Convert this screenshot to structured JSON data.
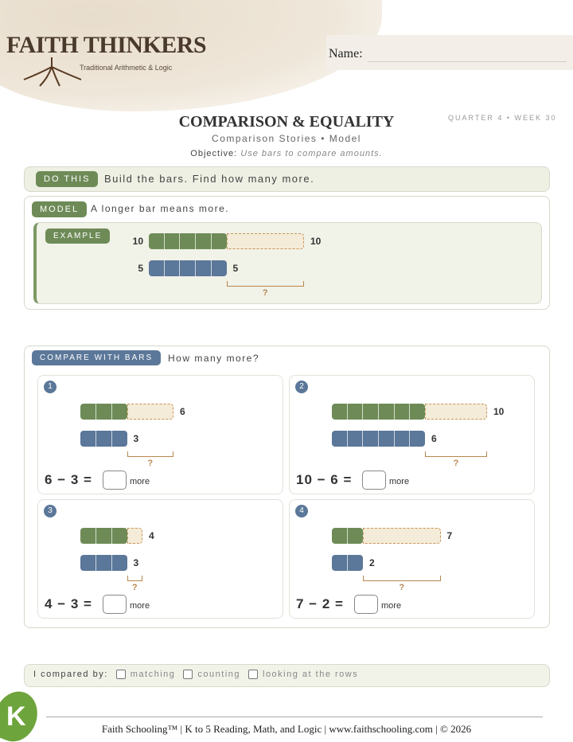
{
  "header": {
    "brand": "FAITH THINKERS",
    "tagline": "Traditional Arithmetic & Logic",
    "name_label": "Name:"
  },
  "title": "COMPARISON & EQUALITY",
  "quarter": "QUARTER 4 • WEEK 30",
  "subtitle": "Comparison Stories • Model",
  "objective_label": "Objective:",
  "objective": "Use bars to compare amounts.",
  "do_this": {
    "tag": "DO THIS",
    "text": "Build the bars. Find how many more."
  },
  "model": {
    "tag": "MODEL",
    "text": "A longer bar means more.",
    "example_tag": "EXAMPLE",
    "long": 10,
    "short": 5,
    "question": "?"
  },
  "compare": {
    "tag": "COMPARE WITH BARS",
    "text": "How many more?",
    "problems": [
      {
        "number": "1",
        "long": 6,
        "short": 3,
        "equation": "6 − 3 =",
        "unit": "more",
        "question": "?"
      },
      {
        "number": "2",
        "long": 10,
        "short": 6,
        "equation": "10 − 6 =",
        "unit": "more",
        "question": "?"
      },
      {
        "number": "3",
        "long": 4,
        "short": 3,
        "equation": "4 − 3 =",
        "unit": "more",
        "question": "?"
      },
      {
        "number": "4",
        "long": 7,
        "short": 2,
        "equation": "7 − 2 =",
        "unit": "more",
        "question": "?"
      }
    ]
  },
  "checklist": {
    "label": "I compared by:",
    "options": [
      "matching",
      "counting",
      "looking at the rows"
    ]
  },
  "footer": {
    "logo": "K",
    "text": "Faith Schooling™ | K to 5 Reading, Math, and Logic | www.faithschooling.com | © 2026"
  }
}
